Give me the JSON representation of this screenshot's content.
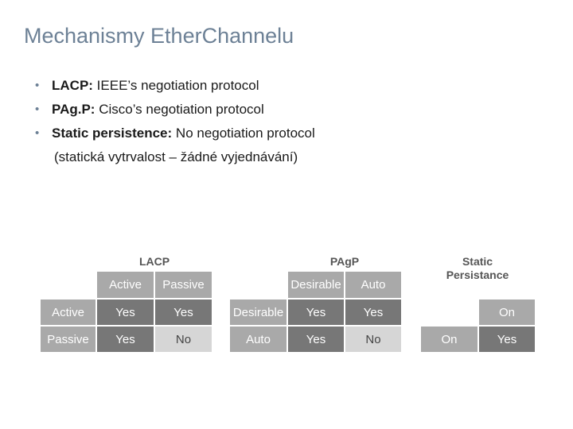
{
  "title": "Mechanismy EtherChannelu",
  "bullets": [
    {
      "label": "LACP:",
      "text": " IEEE’s negotiation protocol"
    },
    {
      "label": "PAg.P:",
      "text": " Cisco’s negotiation protocol"
    },
    {
      "label": "Static persistence:",
      "text": " No negotiation protocol"
    }
  ],
  "bullet_continuation": "(statická vytrvalost – žádné vyjednávání)",
  "tables": {
    "lacp": {
      "title": "LACP",
      "col_headers": [
        "Active",
        "Passive"
      ],
      "rows": [
        {
          "header": "Active",
          "cells": [
            "Yes",
            "Yes"
          ]
        },
        {
          "header": "Passive",
          "cells": [
            "Yes",
            "No"
          ]
        }
      ]
    },
    "pagp": {
      "title": "PAgP",
      "col_headers": [
        "Desirable",
        "Auto"
      ],
      "rows": [
        {
          "header": "Desirable",
          "cells": [
            "Yes",
            "Yes"
          ]
        },
        {
          "header": "Auto",
          "cells": [
            "Yes",
            "No"
          ]
        }
      ]
    },
    "static": {
      "title_line1": "Static",
      "title_line2": "Persistance",
      "col_header": "On",
      "row_header": "On",
      "cell": "Yes"
    }
  },
  "colors": {
    "title": "#6d8196",
    "header_cell": "#a9a9a9",
    "yes_cell": "#777777",
    "no_cell": "#d6d6d6"
  }
}
